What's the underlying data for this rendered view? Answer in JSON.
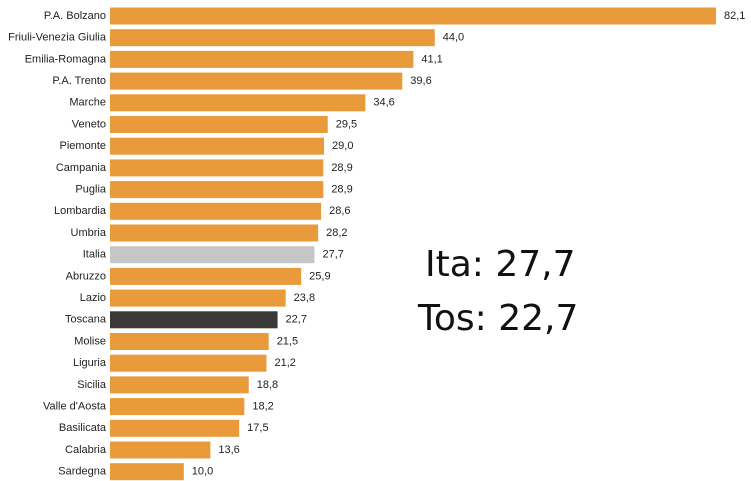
{
  "chart_data": {
    "type": "barh",
    "categories": [
      "P.A. Bolzano",
      "Friuli-Venezia Giulia",
      "Emilia-Romagna",
      "P.A. Trento",
      "Marche",
      "Veneto",
      "Piemonte",
      "Campania",
      "Puglia",
      "Lombardia",
      "Umbria",
      "Italia",
      "Abruzzo",
      "Lazio",
      "Toscana",
      "Molise",
      "Liguria",
      "Sicilia",
      "Valle d'Aosta",
      "Basilicata",
      "Calabria",
      "Sardegna"
    ],
    "values": [
      82.1,
      44.0,
      41.1,
      39.6,
      34.6,
      29.5,
      29.0,
      28.9,
      28.9,
      28.6,
      28.2,
      27.7,
      25.9,
      23.8,
      22.7,
      21.5,
      21.2,
      18.8,
      18.2,
      17.5,
      13.6,
      10.0
    ],
    "value_labels": [
      "82,1",
      "44,0",
      "41,1",
      "39,6",
      "34,6",
      "29,5",
      "29,0",
      "28,9",
      "28,9",
      "28,6",
      "28,2",
      "27,7",
      "25,9",
      "23,8",
      "22,7",
      "21,5",
      "21,2",
      "18,8",
      "18,2",
      "17,5",
      "13,6",
      "10,0"
    ],
    "colors": [
      "#e99a3b",
      "#e99a3b",
      "#e99a3b",
      "#e99a3b",
      "#e99a3b",
      "#e99a3b",
      "#e99a3b",
      "#e99a3b",
      "#e99a3b",
      "#e99a3b",
      "#e99a3b",
      "#c6c6c6",
      "#e99a3b",
      "#e99a3b",
      "#3a3936",
      "#e99a3b",
      "#e99a3b",
      "#e99a3b",
      "#e99a3b",
      "#e99a3b",
      "#e99a3b",
      "#e99a3b"
    ],
    "annotations": [
      "Ita: 27,7",
      "Tos: 22,7"
    ]
  }
}
